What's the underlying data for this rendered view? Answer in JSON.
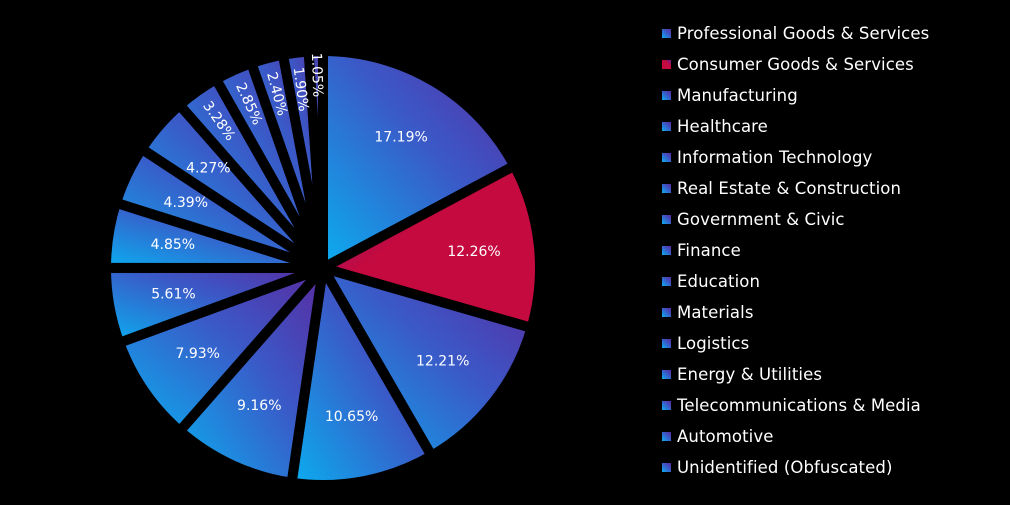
{
  "chart_data": {
    "type": "pie",
    "title": "",
    "start_angle_deg": 0,
    "direction": "clockwise",
    "slices": [
      {
        "name": "Professional Goods & Services",
        "value": 17.19,
        "label": "17.19%",
        "color": "#3d5ac4"
      },
      {
        "name": "Consumer Goods & Services",
        "value": 12.26,
        "label": "12.26%",
        "color": "#c40a3e"
      },
      {
        "name": "Manufacturing",
        "value": 12.21,
        "label": "12.21%",
        "color": "#3d5ac4"
      },
      {
        "name": "Healthcare",
        "value": 10.65,
        "label": "10.65%",
        "color": "#3d5ac4"
      },
      {
        "name": "Information Technology",
        "value": 9.16,
        "label": "9.16%",
        "color": "#3d5ac4"
      },
      {
        "name": "Real Estate & Construction",
        "value": 7.93,
        "label": "7.93%",
        "color": "#3d5ac4"
      },
      {
        "name": "Government & Civic",
        "value": 5.61,
        "label": "5.61%",
        "color": "#3d5ac4"
      },
      {
        "name": "Finance",
        "value": 4.85,
        "label": "4.85%",
        "color": "#3d5ac4"
      },
      {
        "name": "Education",
        "value": 4.39,
        "label": "4.39%",
        "color": "#3d5ac4"
      },
      {
        "name": "Materials",
        "value": 4.27,
        "label": "4.27%",
        "color": "#3d5ac4"
      },
      {
        "name": "Logistics",
        "value": 3.28,
        "label": "3.28%",
        "color": "#3d5ac4"
      },
      {
        "name": "Energy & Utilities",
        "value": 2.85,
        "label": "2.85%",
        "color": "#3d5ac4"
      },
      {
        "name": "Telecommunications & Media",
        "value": 2.4,
        "label": "2.40%",
        "color": "#3d5ac4"
      },
      {
        "name": "Automotive",
        "value": 1.9,
        "label": "1.90%",
        "color": "#3d5ac4"
      },
      {
        "name": "Unidentified (Obfuscated)",
        "value": 1.05,
        "label": "1.05%",
        "color": "#3d5ac4"
      }
    ],
    "legend": {
      "position": "right"
    },
    "colors": {
      "background": "#000000",
      "gradient_light": "#0aaef0",
      "gradient_mid": "#3a5ac8",
      "gradient_dark": "#5a2aa0",
      "highlight": "#c40a3e",
      "highlight_dark": "#6a1a9a",
      "separator": "#000000",
      "text": "#ffffff"
    }
  }
}
